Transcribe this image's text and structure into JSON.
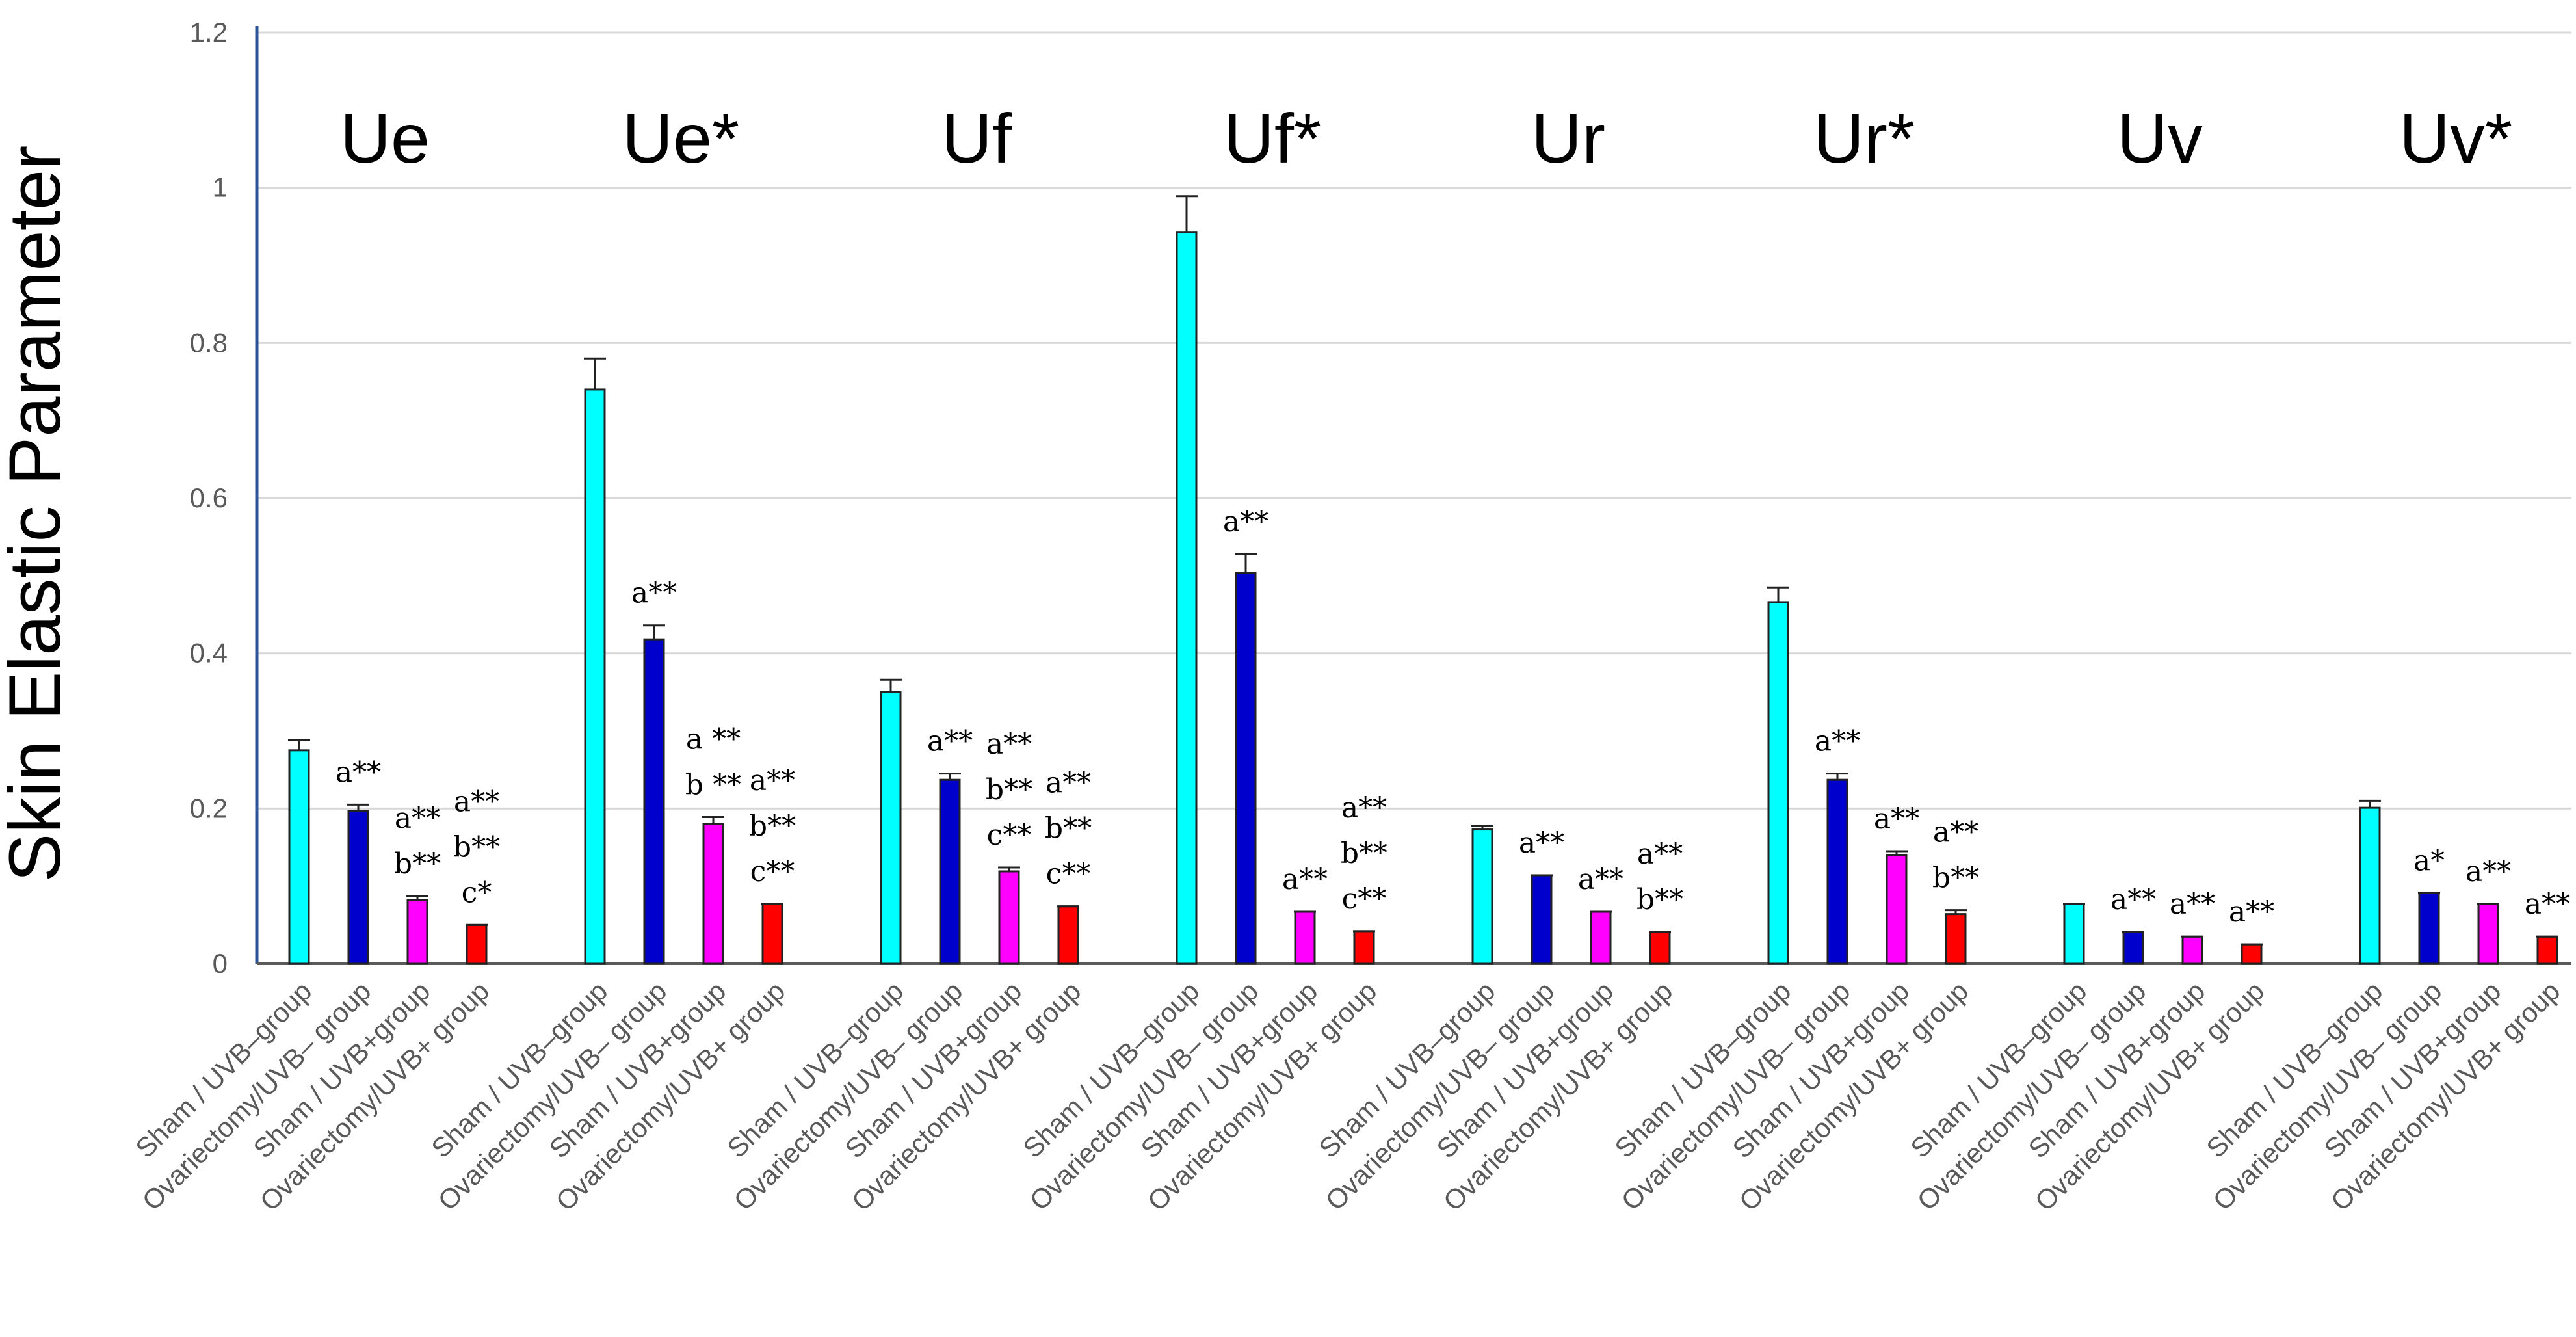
{
  "chart_data": {
    "type": "bar",
    "ylabel": "Skin Elastic Parameter",
    "ylim": [
      0,
      1.2
    ],
    "yticks": [
      "0",
      "0.2",
      "0.4",
      "0.6",
      "0.8",
      "1",
      "1.2"
    ],
    "grid": true,
    "category_labels": [
      "Sham / UVB–group",
      "Ovariectomy/UVB– group",
      "Sham / UVB+group",
      "Ovariectomy/UVB+ group"
    ],
    "colors": {
      "Sham / UVB–group": "#00ffff",
      "Ovariectomy/UVB– group": "#0000cc",
      "Sham / UVB+group": "#ff00ff",
      "Ovariectomy/UVB+ group": "#ff0000"
    },
    "groups": [
      {
        "name": "Ue",
        "values": [
          0.275,
          0.197,
          0.082,
          0.05
        ],
        "errors": [
          0.013,
          0.008,
          0.005,
          0.0
        ],
        "annotations": [
          "",
          "a**",
          "a**\nb**",
          "a**\nb**\nc*"
        ]
      },
      {
        "name": "Ue*",
        "values": [
          0.74,
          0.418,
          0.18,
          0.077
        ],
        "errors": [
          0.04,
          0.018,
          0.009,
          0.0
        ],
        "annotations": [
          "",
          "a**",
          "a **\nb **",
          "a**\nb**\nc**"
        ]
      },
      {
        "name": "Uf",
        "values": [
          0.35,
          0.237,
          0.119,
          0.074
        ],
        "errors": [
          0.016,
          0.008,
          0.005,
          0.0
        ],
        "annotations": [
          "",
          "a**",
          "a**\nb**\nc**",
          "a**\nb**\nc**"
        ]
      },
      {
        "name": "Uf*",
        "values": [
          0.943,
          0.504,
          0.067,
          0.042
        ],
        "errors": [
          0.046,
          0.024,
          0.0,
          0.0
        ],
        "annotations": [
          "",
          "a**",
          "a**",
          "a**\nb**\nc**"
        ]
      },
      {
        "name": "Ur",
        "values": [
          0.173,
          0.114,
          0.067,
          0.041
        ],
        "errors": [
          0.005,
          0.0,
          0.0,
          0.0
        ],
        "annotations": [
          "",
          "a**",
          "a**",
          "a**\nb**"
        ]
      },
      {
        "name": "Ur*",
        "values": [
          0.466,
          0.237,
          0.14,
          0.064
        ],
        "errors": [
          0.019,
          0.008,
          0.005,
          0.005
        ],
        "annotations": [
          "",
          "a**",
          "a**",
          "a**\nb**"
        ]
      },
      {
        "name": "Uv",
        "values": [
          0.077,
          0.041,
          0.035,
          0.025
        ],
        "errors": [
          0.0,
          0.0,
          0.0,
          0.0
        ],
        "annotations": [
          "",
          "a**",
          "a**",
          "a**"
        ]
      },
      {
        "name": "Uv*",
        "values": [
          0.201,
          0.091,
          0.077,
          0.035
        ],
        "errors": [
          0.009,
          0.0,
          0.0,
          0.0
        ],
        "annotations": [
          "",
          "a*",
          "a**",
          "a**"
        ]
      }
    ]
  }
}
